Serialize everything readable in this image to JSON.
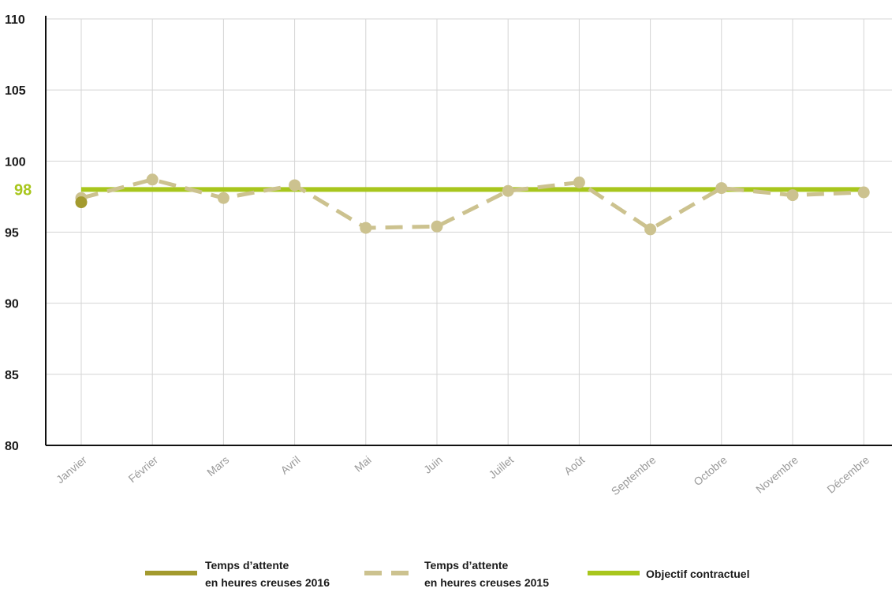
{
  "chart_data": {
    "type": "line",
    "categories": [
      "Janvier",
      "Février",
      "Mars",
      "Avril",
      "Mai",
      "Juin",
      "Juillet",
      "Août",
      "Septembre",
      "Octobre",
      "Novembre",
      "Décembre"
    ],
    "ylim": [
      80,
      110
    ],
    "yticks": [
      80,
      85,
      90,
      95,
      100,
      105,
      110
    ],
    "target_label": "98",
    "grid": "vertical",
    "legend_position": "bottom",
    "series": [
      {
        "key": "s2016",
        "name": "Temps d’attente en heures creuses 2016",
        "legend_lines": [
          "Temps d’attente",
          "en heures creuses 2016"
        ],
        "style": "solid-markers",
        "color": "#a39a2e",
        "values": [
          97.1,
          null,
          null,
          null,
          null,
          null,
          null,
          null,
          null,
          null,
          null,
          null
        ]
      },
      {
        "key": "s2015",
        "name": "Temps d’attente en heures creuses 2015",
        "legend_lines": [
          "Temps d’attente",
          "en heures creuses 2015"
        ],
        "style": "dashed-markers",
        "color": "#ccc28f",
        "values": [
          97.4,
          98.7,
          97.4,
          98.3,
          95.3,
          95.4,
          97.9,
          98.5,
          95.2,
          98.1,
          97.6,
          97.8
        ]
      },
      {
        "key": "target",
        "name": "Objectif contractuel",
        "legend_lines": [
          "Objectif contractuel"
        ],
        "style": "solid",
        "color": "#a8c61d",
        "values": [
          98,
          98,
          98,
          98,
          98,
          98,
          98,
          98,
          98,
          98,
          98,
          98
        ]
      }
    ]
  }
}
